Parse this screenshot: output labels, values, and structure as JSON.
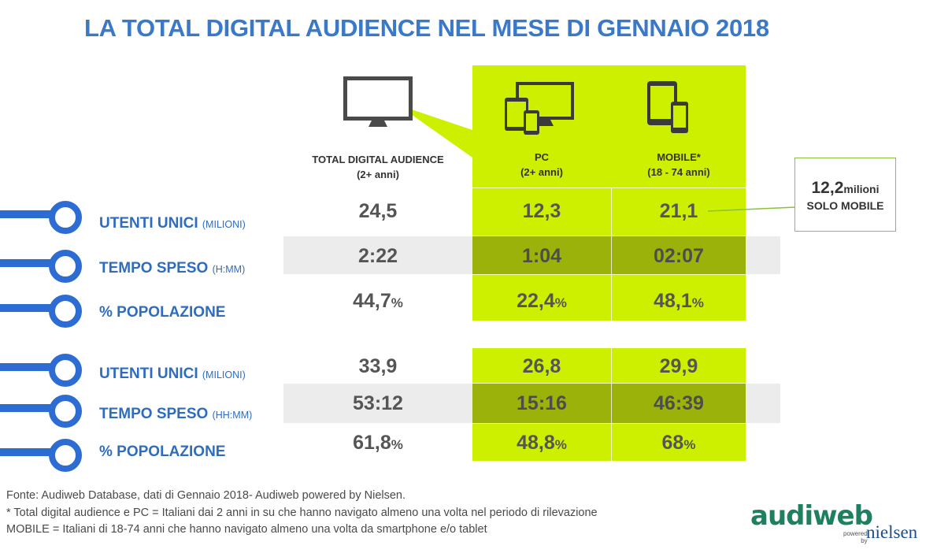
{
  "title": "LA TOTAL DIGITAL AUDIENCE NEL MESE DI GENNAIO 2018",
  "columns": [
    {
      "name": "TOTAL DIGITAL AUDIENCE",
      "sub": "(2+ anni)",
      "icon": "monitor-icon"
    },
    {
      "name": "PC",
      "sub": "(2+ anni)",
      "icon": "pc-devices-icon"
    },
    {
      "name": "MOBILE*",
      "sub": "(18 - 74 anni)",
      "icon": "mobile-devices-icon"
    }
  ],
  "group1": {
    "rows": [
      {
        "label": "UTENTI UNICI",
        "unit_label": "(MILIONI)",
        "values": [
          "24,5",
          "12,3",
          "21,1"
        ],
        "suffix": [
          "",
          "",
          ""
        ]
      },
      {
        "label": "TEMPO SPESO",
        "unit_label": "(H:MM)",
        "values": [
          "2:22",
          "1:04",
          "02:07"
        ],
        "suffix": [
          "",
          "",
          ""
        ]
      },
      {
        "label": "% POPOLAZIONE",
        "unit_label": "",
        "values": [
          "44,7",
          "22,4",
          "48,1"
        ],
        "suffix": [
          "%",
          "%",
          "%"
        ]
      }
    ]
  },
  "group2": {
    "rows": [
      {
        "label": "UTENTI UNICI",
        "unit_label": "(MILIONI)",
        "values": [
          "33,9",
          "26,8",
          "29,9"
        ],
        "suffix": [
          "",
          "",
          ""
        ]
      },
      {
        "label": "TEMPO SPESO",
        "unit_label": "(HH:MM)",
        "values": [
          "53:12",
          "15:16",
          "46:39"
        ],
        "suffix": [
          "",
          "",
          ""
        ]
      },
      {
        "label": "% POPOLAZIONE",
        "unit_label": "",
        "values": [
          "61,8",
          "48,8",
          "68"
        ],
        "suffix": [
          "%",
          "%",
          "%"
        ]
      }
    ]
  },
  "callout": {
    "value": "12,2",
    "unit": "milioni",
    "sub": "SOLO MOBILE"
  },
  "footer": {
    "line1": "Fonte: Audiweb Database, dati di Gennaio 2018- Audiweb powered by Nielsen.",
    "line2": "* Total digital audience e PC = Italiani dai 2 anni in su che hanno navigato almeno una volta nel periodo di rilevazione",
    "line3": "MOBILE = Italiani di 18-74 anni che hanno navigato almeno una volta da smartphone e/o tablet"
  },
  "logo": {
    "brand": "audiweb",
    "powered": "powered",
    "by": "by",
    "partner": "nielsen"
  },
  "colors": {
    "title": "#3a78c8",
    "label": "#2e6cc0",
    "green": "#cdef00",
    "dark_green": "#9bb20a",
    "gray_band": "#ececec",
    "timeline_blue": "#2c6cd3"
  }
}
